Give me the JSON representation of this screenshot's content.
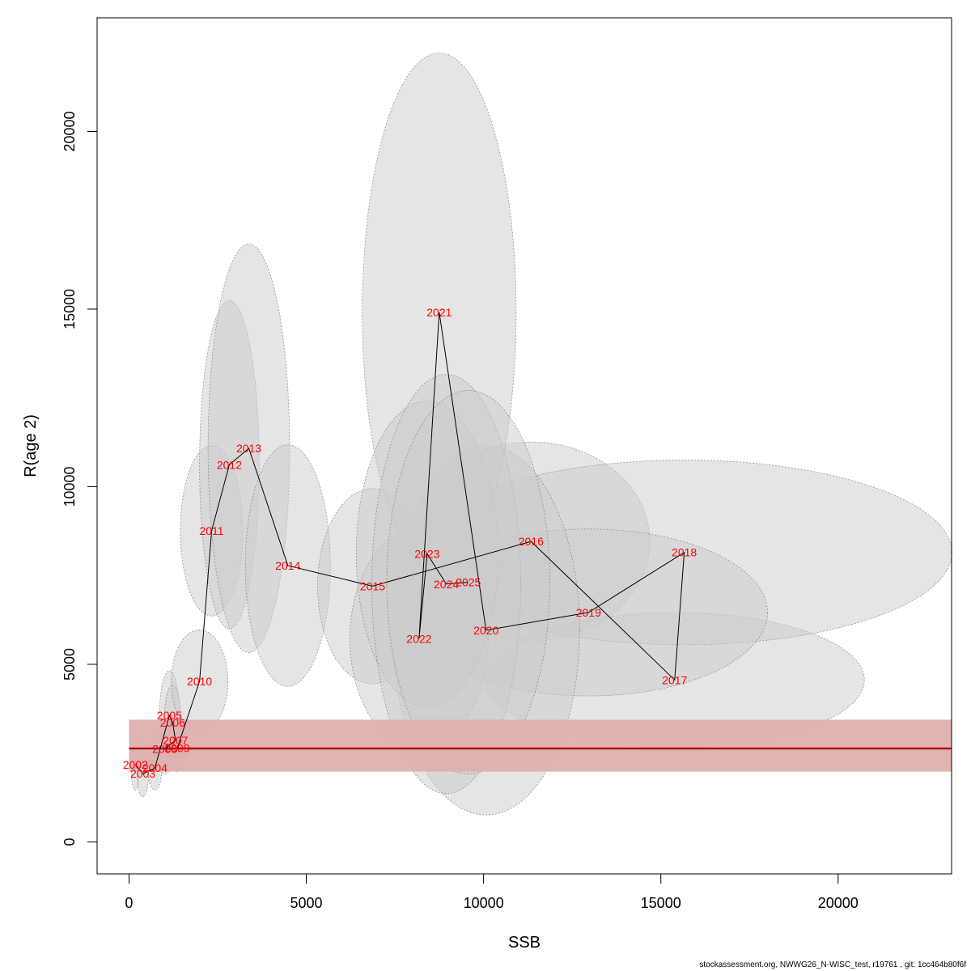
{
  "chart_data": {
    "type": "scatter",
    "title": "",
    "xlabel": "SSB",
    "ylabel": "R(age 2)",
    "xlim": [
      -900,
      23200
    ],
    "ylim": [
      -900,
      23200
    ],
    "x_ticks": [
      0,
      5000,
      10000,
      15000,
      20000
    ],
    "y_ticks": [
      0,
      5000,
      10000,
      15000,
      20000
    ],
    "grid": false,
    "label_color": "#ff0000",
    "path_color": "#000000",
    "ellipse_fill": "#cccccc",
    "ellipse_stroke": "#888888",
    "reference_line": {
      "value": 2630,
      "band": [
        1980,
        3440
      ],
      "line_color": "#b01010",
      "band_color": "#dfb0b0"
    },
    "points": [
      {
        "year": "2002",
        "x": 180,
        "y": 2180,
        "rx": 130,
        "ry": 720
      },
      {
        "year": "2003",
        "x": 390,
        "y": 1920,
        "rx": 160,
        "ry": 650
      },
      {
        "year": "2004",
        "x": 730,
        "y": 2080,
        "rx": 200,
        "ry": 620
      },
      {
        "year": "2005",
        "x": 1140,
        "y": 3560,
        "rx": 280,
        "ry": 1260
      },
      {
        "year": "2006",
        "x": 1230,
        "y": 3360,
        "rx": 240,
        "ry": 1060
      },
      {
        "year": "2007",
        "x": 1310,
        "y": 2860,
        "rx": 240,
        "ry": 760
      },
      {
        "year": "2008",
        "x": 1010,
        "y": 2620,
        "rx": 230,
        "ry": 720
      },
      {
        "year": "2009",
        "x": 1360,
        "y": 2640,
        "rx": 250,
        "ry": 660
      },
      {
        "year": "2010",
        "x": 1990,
        "y": 4520,
        "rx": 800,
        "ry": 1450
      },
      {
        "year": "2011",
        "x": 2330,
        "y": 8760,
        "rx": 880,
        "ry": 2400
      },
      {
        "year": "2012",
        "x": 2830,
        "y": 10620,
        "rx": 840,
        "ry": 4620
      },
      {
        "year": "2013",
        "x": 3380,
        "y": 11080,
        "rx": 1150,
        "ry": 5750
      },
      {
        "year": "2014",
        "x": 4480,
        "y": 7780,
        "rx": 1200,
        "ry": 3400
      },
      {
        "year": "2015",
        "x": 6870,
        "y": 7200,
        "rx": 1550,
        "ry": 2750
      },
      {
        "year": "2016",
        "x": 11340,
        "y": 8460,
        "rx": 3350,
        "ry": 2800
      },
      {
        "year": "2017",
        "x": 15390,
        "y": 4560,
        "rx": 5350,
        "ry": 1900
      },
      {
        "year": "2018",
        "x": 15660,
        "y": 8150,
        "rx": 7550,
        "ry": 2600
      },
      {
        "year": "2019",
        "x": 12960,
        "y": 6460,
        "rx": 5050,
        "ry": 2350
      },
      {
        "year": "2020",
        "x": 10070,
        "y": 5960,
        "rx": 2640,
        "ry": 5200
      },
      {
        "year": "2021",
        "x": 8750,
        "y": 14910,
        "rx": 2170,
        "ry": 7300
      },
      {
        "year": "2022",
        "x": 8180,
        "y": 5720,
        "rx": 1950,
        "ry": 3100
      },
      {
        "year": "2023",
        "x": 8410,
        "y": 8110,
        "rx": 2000,
        "ry": 4300
      },
      {
        "year": "2024",
        "x": 8950,
        "y": 7260,
        "rx": 2100,
        "ry": 5900
      },
      {
        "year": "2025",
        "x": 9570,
        "y": 7310,
        "rx": 2300,
        "ry": 5400
      }
    ]
  },
  "footer": "stockassessment.org, NWWG26_N-WISC_test, r19761 , git: 1cc464b80f6f"
}
